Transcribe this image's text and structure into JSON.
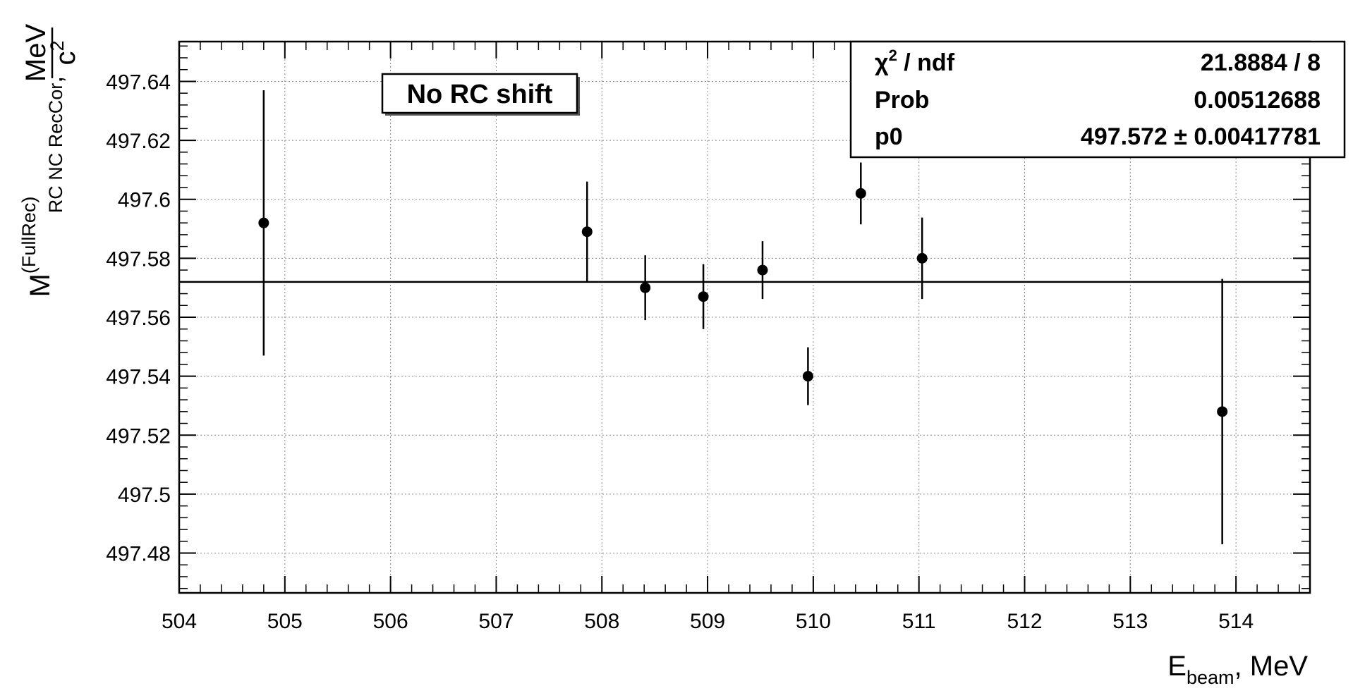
{
  "chart_data": {
    "type": "scatter",
    "x": [
      504.8,
      507.86,
      508.41,
      508.96,
      509.52,
      509.95,
      510.45,
      511.03,
      513.87
    ],
    "y": [
      497.592,
      497.589,
      497.57,
      497.567,
      497.576,
      497.54,
      497.602,
      497.58,
      497.528
    ],
    "y_err": [
      0.045,
      0.017,
      0.011,
      0.011,
      0.0098,
      0.0098,
      0.0105,
      0.0138,
      0.045
    ],
    "fit_value": 497.572,
    "xlim": [
      504,
      514.7
    ],
    "ylim": [
      497.4665,
      497.6535
    ],
    "x_ticks": [
      "504",
      "505",
      "506",
      "507",
      "508",
      "509",
      "510",
      "511",
      "512",
      "513",
      "514"
    ],
    "y_ticks": [
      "497.48",
      "497.5",
      "497.52",
      "497.54",
      "497.56",
      "497.58",
      "497.6",
      "497.62",
      "497.64"
    ],
    "grid": true,
    "xlabel": {
      "main": "E",
      "sub": "beam",
      "suffix": ", MeV"
    },
    "ylabel": {
      "main": "M",
      "sup": "(FullRec)",
      "sub": "RC NC RecCor",
      "comma": ",",
      "unit_num": "MeV",
      "unit_den": "c",
      "unit_den_sup": "2"
    },
    "annotation": "No RC shift",
    "stats": {
      "rows": [
        {
          "label": "χ",
          "label_sup": "2",
          "label_rest": " / ndf",
          "value": "21.8884 / 8"
        },
        {
          "label": "Prob",
          "label_sup": "",
          "label_rest": "",
          "value": "0.00512688"
        },
        {
          "label": "p0",
          "label_sup": "",
          "label_rest": "",
          "value": "497.572 ± 0.00417781"
        }
      ]
    }
  }
}
